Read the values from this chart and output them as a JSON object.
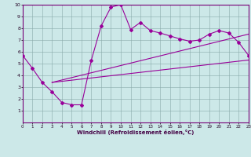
{
  "xlabel": "Windchill (Refroidissement éolien,°C)",
  "xlim": [
    0,
    23
  ],
  "ylim": [
    0,
    10
  ],
  "xticks": [
    0,
    1,
    2,
    3,
    4,
    5,
    6,
    7,
    8,
    9,
    10,
    11,
    12,
    13,
    14,
    15,
    16,
    17,
    18,
    19,
    20,
    21,
    22,
    23
  ],
  "yticks": [
    1,
    2,
    3,
    4,
    5,
    6,
    7,
    8,
    9,
    10
  ],
  "bg_color": "#cce8e8",
  "line_color": "#990099",
  "line1_x": [
    0,
    1,
    2,
    3,
    4,
    5,
    6,
    7,
    8,
    9,
    10,
    11,
    12,
    13,
    14,
    15,
    16,
    17,
    18,
    19,
    20,
    21,
    22,
    23
  ],
  "line1_y": [
    5.7,
    4.6,
    3.4,
    2.6,
    1.7,
    1.5,
    1.5,
    5.3,
    8.2,
    9.8,
    10.0,
    7.9,
    8.5,
    7.8,
    7.6,
    7.35,
    7.1,
    6.9,
    7.0,
    7.5,
    7.8,
    7.6,
    6.8,
    5.7
  ],
  "line2_x": [
    3,
    23
  ],
  "line2_y": [
    3.4,
    7.5
  ],
  "line3_x": [
    3,
    23
  ],
  "line3_y": [
    3.4,
    5.3
  ],
  "marker_x": [
    0,
    1,
    2,
    3,
    4,
    5,
    6,
    7,
    8,
    9,
    10,
    11,
    12,
    13,
    14,
    15,
    16,
    17,
    18,
    19,
    20,
    21,
    22,
    23
  ],
  "marker_y": [
    5.7,
    4.6,
    3.4,
    2.6,
    1.7,
    1.5,
    1.5,
    5.3,
    8.2,
    9.8,
    10.0,
    7.9,
    8.5,
    7.8,
    7.6,
    7.35,
    7.1,
    6.9,
    7.0,
    7.5,
    7.8,
    7.6,
    6.8,
    5.7
  ]
}
